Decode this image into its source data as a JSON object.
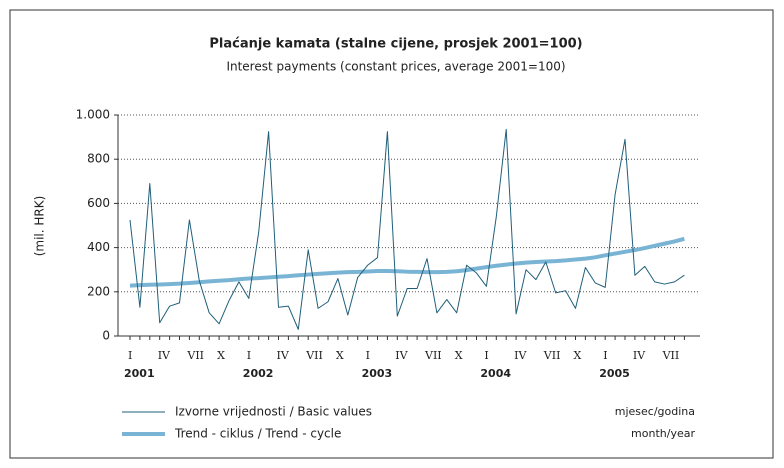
{
  "chart_data": {
    "type": "line",
    "title": "Plaćanje kamata (stalne cijene, prosjek 2001=100)",
    "subtitle": "Interest payments (constant prices, average 2001=100)",
    "ylabel": "(mil. HRK)",
    "xlabel": [
      "mjesec/godina",
      "month/year"
    ],
    "categories": [
      "I",
      null,
      null,
      "IV",
      null,
      null,
      "VII",
      null,
      null,
      "X",
      null,
      null,
      "I",
      null,
      null,
      "IV",
      null,
      null,
      "VII",
      null,
      null,
      "X",
      null,
      null,
      "I",
      null,
      null,
      "IV",
      null,
      null,
      "VII",
      null,
      null,
      "X",
      null,
      null,
      "I",
      null,
      null,
      "IV",
      null,
      null,
      "VII",
      null,
      null,
      "X",
      null,
      null,
      "I",
      null,
      null,
      "IV",
      null,
      null,
      "VII",
      null,
      null
    ],
    "years": [
      "2001",
      "2002",
      "2003",
      "2004",
      "2005"
    ],
    "ylim": [
      0,
      1000
    ],
    "yticks": [
      0,
      200,
      400,
      600,
      800,
      {
        "value": 1000,
        "label": "1.000"
      }
    ],
    "grid": true,
    "series": [
      {
        "name": "Izvorne vrijednosti / Basic values",
        "color": "#1f5f7a",
        "width": 1,
        "values": [
          525,
          130,
          690,
          60,
          135,
          150,
          525,
          250,
          105,
          55,
          160,
          245,
          170,
          470,
          925,
          130,
          135,
          30,
          390,
          125,
          155,
          260,
          95,
          265,
          320,
          355,
          925,
          90,
          215,
          215,
          350,
          105,
          165,
          105,
          320,
          285,
          225,
          540,
          935,
          100,
          300,
          255,
          335,
          195,
          205,
          125,
          310,
          240,
          220,
          640,
          890,
          275,
          315,
          245,
          235,
          245,
          275
        ]
      },
      {
        "name": "Trend - ciklus / Trend - cycle",
        "color": "#7ab4d4",
        "width": 4,
        "values": [
          228,
          230,
          232,
          233,
          235,
          237,
          240,
          243,
          247,
          250,
          253,
          257,
          260,
          262,
          265,
          268,
          271,
          275,
          278,
          281,
          284,
          287,
          289,
          290,
          292,
          294,
          294,
          293,
          291,
          290,
          289,
          289,
          290,
          293,
          298,
          305,
          312,
          318,
          323,
          328,
          332,
          335,
          337,
          339,
          342,
          346,
          350,
          356,
          365,
          373,
          381,
          389,
          398,
          408,
          418,
          428,
          440
        ]
      }
    ]
  }
}
